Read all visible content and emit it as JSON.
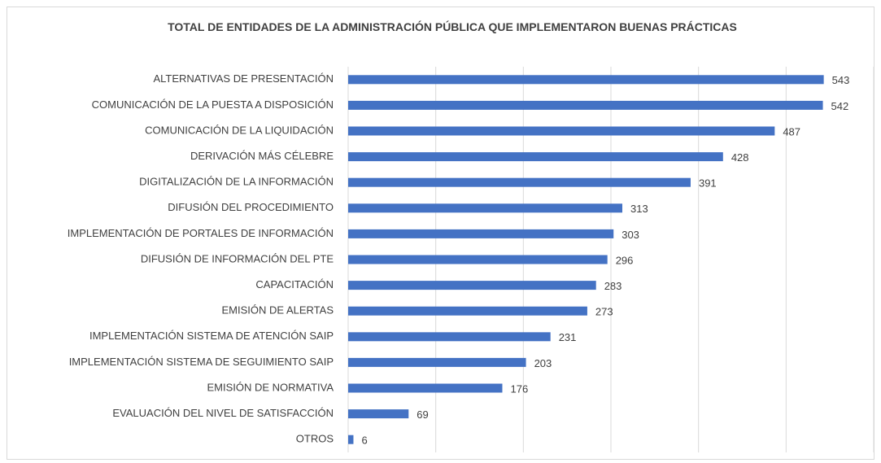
{
  "chart_data": {
    "type": "barh",
    "title": "TOTAL DE ENTIDADES  DE LA ADMINISTRACIÓN PÚBLICA QUE IMPLEMENTARON BUENAS PRÁCTICAS",
    "categories": [
      "ALTERNATIVAS DE PRESENTACIÓN",
      "COMUNICACIÓN DE LA PUESTA A DISPOSICIÓN",
      "COMUNICACIÓN DE LA LIQUIDACIÓN",
      "DERIVACIÓN MÁS CÉLEBRE",
      "DIGITALIZACIÓN DE LA INFORMACIÓN",
      "DIFUSIÓN DEL PROCEDIMIENTO",
      "IMPLEMENTACIÓN DE PORTALES DE INFORMACIÓN",
      "DIFUSIÓN DE INFORMACIÓN DEL PTE",
      "CAPACITACIÓN",
      "EMISIÓN DE ALERTAS",
      "IMPLEMENTACIÓN SISTEMA DE ATENCIÓN SAIP",
      "IMPLEMENTACIÓN SISTEMA DE SEGUIMIENTO SAIP",
      "EMISIÓN DE NORMATIVA",
      "EVALUACIÓN DEL NIVEL DE SATISFACCIÓN",
      "OTROS"
    ],
    "values": [
      543,
      542,
      487,
      428,
      391,
      313,
      303,
      296,
      283,
      273,
      231,
      203,
      176,
      69,
      6
    ],
    "color": "#4472c4",
    "xlim": [
      0,
      600
    ],
    "xticks": [
      0,
      100,
      200,
      300,
      400,
      500,
      600
    ],
    "grid": true
  }
}
